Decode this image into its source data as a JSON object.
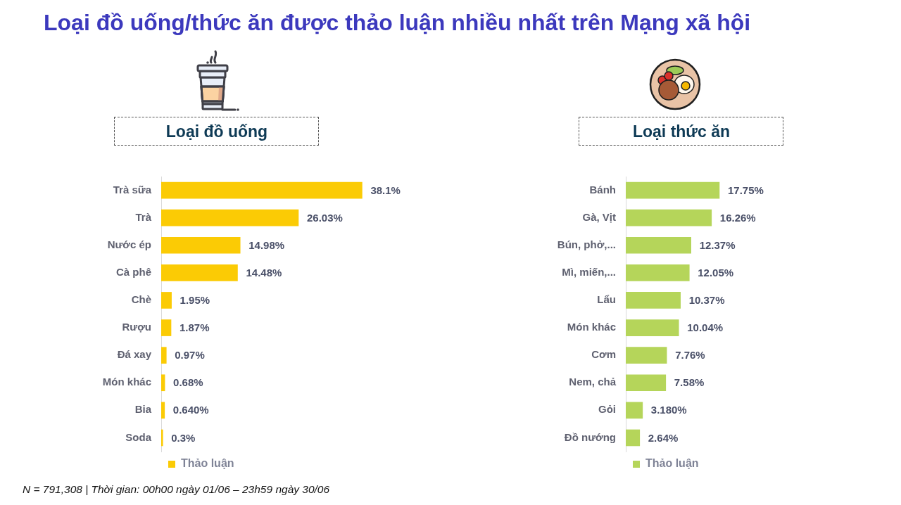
{
  "chart_data": [
    {
      "type": "bar",
      "title": "Loại đồ uống/thức ăn được thảo luận nhiều nhất trên Mạng xã hội",
      "subtitle": "Loại đồ uống",
      "orientation": "horizontal",
      "categories": [
        "Trà sữa",
        "Trà",
        "Nước ép",
        "Cà phê",
        "Chè",
        "Rượu",
        "Đá xay",
        "Món khác",
        "Bia",
        "Soda"
      ],
      "series": [
        {
          "name": "Thảo luận",
          "color": "#fbcb05",
          "values": [
            38.1,
            26.03,
            14.98,
            14.48,
            1.95,
            1.87,
            0.97,
            0.68,
            0.64,
            0.3
          ],
          "value_labels": [
            "38.1%",
            "26.03%",
            "14.98%",
            "14.48%",
            "1.95%",
            "1.87%",
            "0.97%",
            "0.68%",
            "0.640%",
            "0.3%"
          ]
        }
      ],
      "legend": "bottom",
      "grid": false,
      "tick_labels": "y",
      "annotations": [
        "N = 791,308 | Thời gian: 00h00 ngày 01/06 – 23h59 ngày 30/06"
      ]
    },
    {
      "type": "bar",
      "subtitle": "Loại thức ăn",
      "orientation": "horizontal",
      "categories": [
        "Bánh",
        "Gà, Vịt",
        "Bún, phở,...",
        "Mì, miến,...",
        "Lẩu",
        "Món khác",
        "Cơm",
        "Nem, chả",
        "Gỏi",
        "Đồ nướng"
      ],
      "series": [
        {
          "name": "Thảo luận",
          "color": "#b5d55a",
          "values": [
            17.75,
            16.26,
            12.37,
            12.05,
            10.37,
            10.04,
            7.76,
            7.58,
            3.18,
            2.64
          ],
          "value_labels": [
            "17.75%",
            "16.26%",
            "12.37%",
            "12.05%",
            "10.37%",
            "10.04%",
            "7.76%",
            "7.58%",
            "3.180%",
            "2.64%"
          ]
        }
      ],
      "legend": "bottom",
      "grid": false,
      "tick_labels": "y"
    }
  ]
}
